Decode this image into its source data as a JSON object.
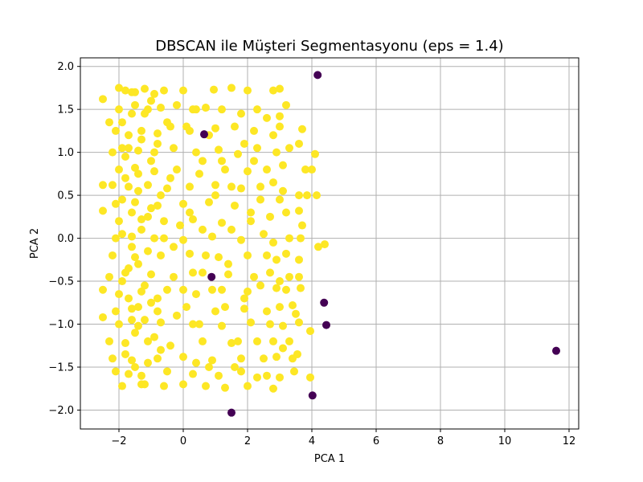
{
  "chart_data": {
    "type": "scatter",
    "title": "DBSCAN ile Müşteri Segmentasyonu (eps = 1.4)",
    "xlabel": "PCA 1",
    "ylabel": "PCA 2",
    "xlim": [
      -3.2,
      12.3
    ],
    "ylim": [
      -2.22,
      2.1
    ],
    "xticks": [
      -2,
      0,
      2,
      4,
      6,
      8,
      10,
      12
    ],
    "yticks": [
      -2.0,
      -1.5,
      -1.0,
      -0.5,
      0.0,
      0.5,
      1.0,
      1.5,
      2.0
    ],
    "xtick_labels": [
      "−2",
      "0",
      "2",
      "4",
      "6",
      "8",
      "10",
      "12"
    ],
    "ytick_labels": [
      "−2.0",
      "−1.5",
      "−1.0",
      "−0.5",
      "0.0",
      "0.5",
      "1.0",
      "1.5",
      "2.0"
    ],
    "grid": true,
    "colors": {
      "cluster": "#fde725",
      "noise": "#440154",
      "grid": "#b0b0b0"
    },
    "series": [
      {
        "values": [
          [
            -2.5,
            1.62
          ],
          [
            -2.0,
            1.75
          ],
          [
            -1.8,
            1.72
          ],
          [
            -1.5,
            1.7
          ],
          [
            -1.2,
            1.74
          ],
          [
            -0.9,
            1.68
          ],
          [
            -0.6,
            1.72
          ],
          [
            0.0,
            1.72
          ],
          [
            0.95,
            1.73
          ],
          [
            1.5,
            1.75
          ],
          [
            2.0,
            1.72
          ],
          [
            2.8,
            1.72
          ],
          [
            3.0,
            1.74
          ],
          [
            -2.3,
            1.35
          ],
          [
            -2.0,
            1.5
          ],
          [
            -1.6,
            1.45
          ],
          [
            -1.1,
            1.5
          ],
          [
            -0.7,
            1.52
          ],
          [
            -0.2,
            1.55
          ],
          [
            0.3,
            1.5
          ],
          [
            0.7,
            1.52
          ],
          [
            1.2,
            1.5
          ],
          [
            1.8,
            1.45
          ],
          [
            2.3,
            1.5
          ],
          [
            2.6,
            1.4
          ],
          [
            3.0,
            1.42
          ],
          [
            3.2,
            1.55
          ],
          [
            -2.1,
            1.25
          ],
          [
            -1.7,
            1.2
          ],
          [
            -1.3,
            1.25
          ],
          [
            -0.8,
            1.22
          ],
          [
            -0.4,
            1.3
          ],
          [
            0.2,
            1.25
          ],
          [
            1.0,
            1.28
          ],
          [
            1.6,
            1.3
          ],
          [
            2.2,
            1.25
          ],
          [
            2.8,
            1.2
          ],
          [
            3.0,
            1.3
          ],
          [
            3.7,
            1.27
          ],
          [
            -2.2,
            1.0
          ],
          [
            -1.9,
            1.05
          ],
          [
            -1.4,
            1.02
          ],
          [
            -0.9,
            1.0
          ],
          [
            -0.3,
            1.05
          ],
          [
            0.4,
            1.0
          ],
          [
            1.1,
            1.03
          ],
          [
            1.7,
            0.98
          ],
          [
            2.3,
            1.05
          ],
          [
            2.9,
            1.0
          ],
          [
            3.3,
            1.05
          ],
          [
            3.6,
            1.1
          ],
          [
            4.1,
            0.98
          ],
          [
            -2.0,
            0.8
          ],
          [
            -1.5,
            0.82
          ],
          [
            -0.9,
            0.78
          ],
          [
            -0.2,
            0.8
          ],
          [
            0.5,
            0.75
          ],
          [
            1.3,
            0.8
          ],
          [
            2.0,
            0.78
          ],
          [
            2.6,
            0.8
          ],
          [
            3.1,
            0.85
          ],
          [
            3.8,
            0.8
          ],
          [
            4.0,
            0.8
          ],
          [
            -2.2,
            0.62
          ],
          [
            -1.7,
            0.6
          ],
          [
            -1.1,
            0.62
          ],
          [
            -0.5,
            0.58
          ],
          [
            0.2,
            0.6
          ],
          [
            1.0,
            0.62
          ],
          [
            1.8,
            0.58
          ],
          [
            2.4,
            0.6
          ],
          [
            2.8,
            0.65
          ],
          [
            3.1,
            0.55
          ],
          [
            -2.5,
            0.62
          ],
          [
            -2.1,
            0.4
          ],
          [
            -1.5,
            0.42
          ],
          [
            -0.8,
            0.38
          ],
          [
            0.0,
            0.4
          ],
          [
            0.8,
            0.42
          ],
          [
            1.6,
            0.38
          ],
          [
            2.4,
            0.45
          ],
          [
            3.0,
            0.45
          ],
          [
            3.6,
            0.5
          ],
          [
            3.85,
            0.5
          ],
          [
            4.15,
            0.5
          ],
          [
            -2.5,
            0.32
          ],
          [
            -2.0,
            0.2
          ],
          [
            -1.3,
            0.22
          ],
          [
            -0.6,
            0.2
          ],
          [
            0.3,
            0.22
          ],
          [
            1.2,
            0.18
          ],
          [
            2.1,
            0.2
          ],
          [
            2.7,
            0.25
          ],
          [
            3.2,
            0.3
          ],
          [
            3.6,
            0.32
          ],
          [
            3.7,
            0.15
          ],
          [
            -2.1,
            0.0
          ],
          [
            -1.6,
            0.02
          ],
          [
            -0.9,
            0.0
          ],
          [
            0.0,
            -0.02
          ],
          [
            0.9,
            0.02
          ],
          [
            1.8,
            -0.02
          ],
          [
            2.5,
            0.05
          ],
          [
            2.8,
            -0.05
          ],
          [
            3.3,
            0.0
          ],
          [
            3.65,
            0.0
          ],
          [
            4.2,
            -0.1
          ],
          [
            4.4,
            -0.07
          ],
          [
            -2.2,
            -0.2
          ],
          [
            -1.5,
            -0.22
          ],
          [
            -0.7,
            -0.2
          ],
          [
            0.2,
            -0.18
          ],
          [
            1.1,
            -0.22
          ],
          [
            2.0,
            -0.2
          ],
          [
            2.6,
            -0.2
          ],
          [
            2.9,
            -0.25
          ],
          [
            3.2,
            -0.18
          ],
          [
            3.6,
            -0.25
          ],
          [
            -2.3,
            -0.45
          ],
          [
            -1.8,
            -0.4
          ],
          [
            -1.0,
            -0.42
          ],
          [
            -0.3,
            -0.45
          ],
          [
            0.6,
            -0.4
          ],
          [
            1.4,
            -0.42
          ],
          [
            2.2,
            -0.45
          ],
          [
            2.7,
            -0.4
          ],
          [
            3.0,
            -0.5
          ],
          [
            3.3,
            -0.45
          ],
          [
            3.6,
            -0.45
          ],
          [
            -2.5,
            -0.6
          ],
          [
            -2.0,
            -0.65
          ],
          [
            -1.3,
            -0.62
          ],
          [
            -0.5,
            -0.6
          ],
          [
            0.4,
            -0.65
          ],
          [
            1.2,
            -0.6
          ],
          [
            2.0,
            -0.62
          ],
          [
            2.4,
            -0.55
          ],
          [
            2.9,
            -0.58
          ],
          [
            3.2,
            -0.6
          ],
          [
            3.65,
            -0.58
          ],
          [
            -2.1,
            -0.85
          ],
          [
            -1.6,
            -0.82
          ],
          [
            -0.8,
            -0.85
          ],
          [
            0.1,
            -0.8
          ],
          [
            1.0,
            -0.85
          ],
          [
            1.9,
            -0.82
          ],
          [
            2.6,
            -0.85
          ],
          [
            3.0,
            -0.8
          ],
          [
            3.4,
            -0.78
          ],
          [
            3.5,
            -0.88
          ],
          [
            -2.5,
            -0.92
          ],
          [
            -2.0,
            -1.0
          ],
          [
            -1.4,
            -1.02
          ],
          [
            -0.7,
            -0.98
          ],
          [
            0.3,
            -1.0
          ],
          [
            1.2,
            -1.02
          ],
          [
            2.1,
            -0.98
          ],
          [
            2.7,
            -1.0
          ],
          [
            3.1,
            -1.02
          ],
          [
            3.6,
            -0.98
          ],
          [
            3.95,
            -1.08
          ],
          [
            -2.3,
            -1.2
          ],
          [
            -1.8,
            -1.22
          ],
          [
            -1.1,
            -1.2
          ],
          [
            -0.4,
            -1.25
          ],
          [
            0.6,
            -1.2
          ],
          [
            1.5,
            -1.22
          ],
          [
            2.3,
            -1.2
          ],
          [
            2.8,
            -1.2
          ],
          [
            3.1,
            -1.28
          ],
          [
            3.3,
            -1.2
          ],
          [
            -2.2,
            -1.4
          ],
          [
            -1.6,
            -1.42
          ],
          [
            -0.8,
            -1.4
          ],
          [
            0.0,
            -1.38
          ],
          [
            0.9,
            -1.42
          ],
          [
            1.8,
            -1.4
          ],
          [
            2.5,
            -1.4
          ],
          [
            2.9,
            -1.38
          ],
          [
            3.4,
            -1.4
          ],
          [
            3.55,
            -1.35
          ],
          [
            -2.1,
            -1.55
          ],
          [
            -1.7,
            -1.58
          ],
          [
            -1.3,
            -1.6
          ],
          [
            -0.5,
            -1.55
          ],
          [
            0.3,
            -1.58
          ],
          [
            1.1,
            -1.6
          ],
          [
            1.8,
            -1.55
          ],
          [
            2.3,
            -1.62
          ],
          [
            2.6,
            -1.6
          ],
          [
            3.0,
            -1.62
          ],
          [
            3.45,
            -1.55
          ],
          [
            3.95,
            -1.62
          ],
          [
            -1.9,
            -1.72
          ],
          [
            -1.2,
            -1.7
          ],
          [
            -0.6,
            -1.72
          ],
          [
            0.0,
            -1.7
          ],
          [
            0.7,
            -1.72
          ],
          [
            1.3,
            -1.74
          ],
          [
            2.0,
            -1.72
          ],
          [
            2.8,
            -1.75
          ],
          [
            -1.8,
            0.95
          ],
          [
            -1.6,
            0.3
          ],
          [
            -1.4,
            -0.3
          ],
          [
            -1.2,
            -0.95
          ],
          [
            -1.8,
            -1.35
          ],
          [
            -1.5,
            1.55
          ],
          [
            -1.0,
            0.9
          ],
          [
            -1.3,
            0.1
          ],
          [
            -1.7,
            -0.7
          ],
          [
            -1.1,
            -1.45
          ],
          [
            -1.9,
            1.35
          ],
          [
            -1.4,
            0.55
          ],
          [
            -1.6,
            -0.1
          ],
          [
            -1.2,
            -0.55
          ],
          [
            -1.5,
            -1.1
          ],
          [
            -1.3,
            1.15
          ],
          [
            -1.8,
            0.7
          ],
          [
            -1.1,
            0.25
          ],
          [
            -1.7,
            -0.35
          ],
          [
            -1.4,
            -0.8
          ],
          [
            -1.0,
            1.6
          ],
          [
            -0.8,
            1.1
          ],
          [
            -0.7,
            0.5
          ],
          [
            -0.6,
            0.0
          ],
          [
            -0.8,
            -0.7
          ],
          [
            -0.7,
            -1.3
          ],
          [
            -0.4,
            0.7
          ],
          [
            -0.3,
            -0.1
          ],
          [
            -0.2,
            -0.9
          ],
          [
            0.1,
            1.3
          ],
          [
            0.2,
            0.3
          ],
          [
            0.3,
            -0.4
          ],
          [
            0.5,
            -1.0
          ],
          [
            0.6,
            0.9
          ],
          [
            0.7,
            -0.2
          ],
          [
            0.8,
            -1.5
          ],
          [
            1.0,
            0.5
          ],
          [
            1.3,
            -0.8
          ],
          [
            1.5,
            0.1
          ],
          [
            1.7,
            -1.2
          ],
          [
            0.4,
            1.5
          ],
          [
            0.8,
            1.2
          ],
          [
            1.2,
            0.9
          ],
          [
            1.5,
            0.6
          ],
          [
            1.9,
            1.1
          ],
          [
            2.1,
            0.3
          ],
          [
            0.6,
            0.1
          ],
          [
            0.9,
            -0.6
          ],
          [
            1.4,
            -0.3
          ],
          [
            1.6,
            -1.5
          ],
          [
            -1.9,
            0.05
          ],
          [
            -1.6,
            1.7
          ],
          [
            -1.3,
            -1.7
          ],
          [
            -1.9,
            -0.5
          ],
          [
            -1.5,
            -1.5
          ],
          [
            -1.2,
            1.45
          ],
          [
            -1.7,
            1.05
          ],
          [
            -1.4,
            0.75
          ],
          [
            -1.9,
            0.45
          ],
          [
            -1.6,
            -0.95
          ],
          [
            -1.1,
            -0.15
          ],
          [
            -1.0,
            -0.75
          ],
          [
            -0.9,
            -1.15
          ],
          [
            -1.0,
            0.35
          ],
          [
            -0.5,
            1.35
          ],
          [
            -0.1,
            0.15
          ],
          [
            0.0,
            -0.6
          ],
          [
            0.4,
            -1.45
          ],
          [
            1.9,
            -0.7
          ],
          [
            2.2,
            0.9
          ]
        ]
      },
      {
        "values": [
          [
            4.18,
            1.9
          ],
          [
            0.65,
            1.21
          ],
          [
            4.38,
            -0.75
          ],
          [
            4.45,
            -1.01
          ],
          [
            11.6,
            -1.31
          ],
          [
            4.02,
            -1.83
          ],
          [
            1.5,
            -2.03
          ],
          [
            0.88,
            -0.45
          ]
        ]
      }
    ]
  }
}
